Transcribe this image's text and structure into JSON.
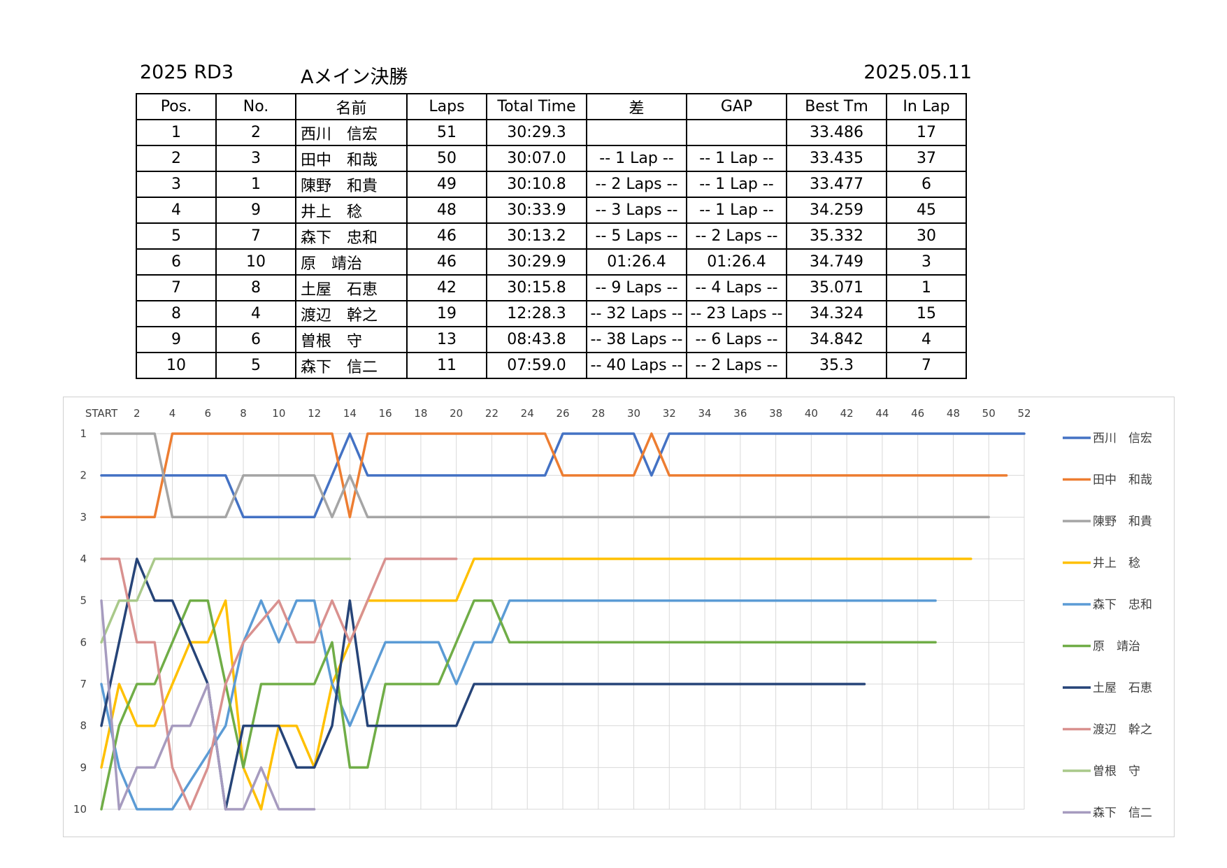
{
  "header": {
    "round": "2025 RD3",
    "title": "Aメイン決勝",
    "date": "2025.05.11"
  },
  "table": {
    "columns": [
      "Pos.",
      "No.",
      "名前",
      "Laps",
      "Total Time",
      "差",
      "GAP",
      "Best Tm",
      "In Lap"
    ],
    "rows": [
      [
        "1",
        "2",
        "西川　信宏",
        "51",
        "30:29.3",
        "",
        "",
        "33.486",
        "17"
      ],
      [
        "2",
        "3",
        "田中　和哉",
        "50",
        "30:07.0",
        "-- 1 Lap --",
        "-- 1 Lap --",
        "33.435",
        "37"
      ],
      [
        "3",
        "1",
        "陳野　和貴",
        "49",
        "30:10.8",
        "-- 2 Laps --",
        "-- 1 Lap --",
        "33.477",
        "6"
      ],
      [
        "4",
        "9",
        "井上　稔",
        "48",
        "30:33.9",
        "-- 3 Laps --",
        "-- 1 Lap --",
        "34.259",
        "45"
      ],
      [
        "5",
        "7",
        "森下　忠和",
        "46",
        "30:13.2",
        "-- 5 Laps --",
        "-- 2 Laps --",
        "35.332",
        "30"
      ],
      [
        "6",
        "10",
        "原　靖治",
        "46",
        "30:29.9",
        "01:26.4",
        "01:26.4",
        "34.749",
        "3"
      ],
      [
        "7",
        "8",
        "土屋　石恵",
        "42",
        "30:15.8",
        "-- 9 Laps --",
        "-- 4 Laps --",
        "35.071",
        "1"
      ],
      [
        "8",
        "4",
        "渡辺　幹之",
        "19",
        "12:28.3",
        "-- 32 Laps --",
        "-- 23 Laps --",
        "34.324",
        "15"
      ],
      [
        "9",
        "6",
        "曽根　守",
        "13",
        "08:43.8",
        "-- 38 Laps --",
        "-- 6 Laps --",
        "34.842",
        "4"
      ],
      [
        "10",
        "5",
        "森下　信二",
        "11",
        "07:59.0",
        "-- 40 Laps --",
        "-- 2 Laps --",
        "35.3",
        "7"
      ]
    ]
  },
  "chart_data": {
    "type": "line",
    "x_tick_labels": [
      "START",
      "2",
      "4",
      "6",
      "8",
      "10",
      "12",
      "14",
      "16",
      "18",
      "20",
      "22",
      "24",
      "26",
      "28",
      "30",
      "32",
      "34",
      "36",
      "38",
      "40",
      "42",
      "44",
      "46",
      "48",
      "50",
      "52"
    ],
    "y_tick_labels": [
      "1",
      "2",
      "3",
      "4",
      "5",
      "6",
      "7",
      "8",
      "9",
      "10"
    ],
    "xlim": [
      0,
      52
    ],
    "ylim": [
      1,
      10
    ],
    "y_inverted": true,
    "grid": true,
    "legend_position": "right",
    "series": [
      {
        "name": "西川　信宏",
        "color": "#4472c4",
        "points": [
          [
            0,
            2
          ],
          [
            7,
            2
          ],
          [
            8,
            3
          ],
          [
            12,
            3
          ],
          [
            14,
            1
          ],
          [
            15,
            2
          ],
          [
            25,
            2
          ],
          [
            26,
            1
          ],
          [
            30,
            1
          ],
          [
            31,
            2
          ],
          [
            32,
            1
          ],
          [
            52,
            1
          ]
        ]
      },
      {
        "name": "田中　和哉",
        "color": "#ed7d31",
        "points": [
          [
            0,
            3
          ],
          [
            3,
            3
          ],
          [
            4,
            1
          ],
          [
            13,
            1
          ],
          [
            14,
            3
          ],
          [
            15,
            1
          ],
          [
            25,
            1
          ],
          [
            26,
            2
          ],
          [
            30,
            2
          ],
          [
            31,
            1
          ],
          [
            32,
            2
          ],
          [
            51,
            2
          ]
        ]
      },
      {
        "name": "陳野　和貴",
        "color": "#a5a5a5",
        "points": [
          [
            0,
            1
          ],
          [
            3,
            1
          ],
          [
            4,
            3
          ],
          [
            7,
            3
          ],
          [
            8,
            2
          ],
          [
            12,
            2
          ],
          [
            13,
            3
          ],
          [
            14,
            2
          ],
          [
            15,
            3
          ],
          [
            50,
            3
          ]
        ]
      },
      {
        "name": "井上　稔",
        "color": "#ffc000",
        "points": [
          [
            0,
            9
          ],
          [
            1,
            7
          ],
          [
            2,
            8
          ],
          [
            3,
            8
          ],
          [
            5,
            6
          ],
          [
            6,
            6
          ],
          [
            7,
            5
          ],
          [
            8,
            9
          ],
          [
            9,
            10
          ],
          [
            10,
            8
          ],
          [
            11,
            8
          ],
          [
            12,
            9
          ],
          [
            13,
            7
          ],
          [
            15,
            5
          ],
          [
            20,
            5
          ],
          [
            21,
            4
          ],
          [
            49,
            4
          ]
        ]
      },
      {
        "name": "森下　忠和",
        "color": "#5b9bd5",
        "points": [
          [
            0,
            7
          ],
          [
            1,
            9
          ],
          [
            2,
            10
          ],
          [
            4,
            10
          ],
          [
            7,
            8
          ],
          [
            8,
            6
          ],
          [
            9,
            5
          ],
          [
            10,
            6
          ],
          [
            11,
            5
          ],
          [
            12,
            5
          ],
          [
            13,
            7
          ],
          [
            14,
            8
          ],
          [
            16,
            6
          ],
          [
            19,
            6
          ],
          [
            20,
            7
          ],
          [
            21,
            6
          ],
          [
            22,
            6
          ],
          [
            23,
            5
          ],
          [
            47,
            5
          ]
        ]
      },
      {
        "name": "原　靖治",
        "color": "#70ad47",
        "points": [
          [
            0,
            10
          ],
          [
            1,
            8
          ],
          [
            2,
            7
          ],
          [
            3,
            7
          ],
          [
            5,
            5
          ],
          [
            6,
            5
          ],
          [
            8,
            9
          ],
          [
            9,
            7
          ],
          [
            12,
            7
          ],
          [
            13,
            6
          ],
          [
            14,
            9
          ],
          [
            15,
            9
          ],
          [
            16,
            7
          ],
          [
            19,
            7
          ],
          [
            21,
            5
          ],
          [
            22,
            5
          ],
          [
            23,
            6
          ],
          [
            47,
            6
          ]
        ]
      },
      {
        "name": "土屋　石恵",
        "color": "#264478",
        "points": [
          [
            0,
            8
          ],
          [
            2,
            4
          ],
          [
            3,
            5
          ],
          [
            4,
            5
          ],
          [
            6,
            7
          ],
          [
            7,
            10
          ],
          [
            8,
            8
          ],
          [
            10,
            8
          ],
          [
            11,
            9
          ],
          [
            12,
            9
          ],
          [
            13,
            8
          ],
          [
            14,
            5
          ],
          [
            15,
            8
          ],
          [
            20,
            8
          ],
          [
            21,
            7
          ],
          [
            43,
            7
          ]
        ]
      },
      {
        "name": "渡辺　幹之",
        "color": "#d9918f",
        "points": [
          [
            0,
            4
          ],
          [
            1,
            4
          ],
          [
            2,
            6
          ],
          [
            3,
            6
          ],
          [
            4,
            9
          ],
          [
            5,
            10
          ],
          [
            6,
            9
          ],
          [
            7,
            7
          ],
          [
            8,
            6
          ],
          [
            10,
            5
          ],
          [
            11,
            6
          ],
          [
            12,
            6
          ],
          [
            13,
            5
          ],
          [
            14,
            6
          ],
          [
            16,
            4
          ],
          [
            20,
            4
          ]
        ]
      },
      {
        "name": "曽根　守",
        "color": "#a9c98a",
        "points": [
          [
            0,
            6
          ],
          [
            1,
            5
          ],
          [
            2,
            5
          ],
          [
            3,
            4
          ],
          [
            14,
            4
          ]
        ]
      },
      {
        "name": "森下　信二",
        "color": "#a69bbf",
        "points": [
          [
            0,
            5
          ],
          [
            1,
            10
          ],
          [
            2,
            9
          ],
          [
            3,
            9
          ],
          [
            4,
            8
          ],
          [
            5,
            8
          ],
          [
            6,
            7
          ],
          [
            7,
            10
          ],
          [
            8,
            10
          ],
          [
            9,
            9
          ],
          [
            10,
            10
          ],
          [
            12,
            10
          ]
        ]
      }
    ]
  }
}
